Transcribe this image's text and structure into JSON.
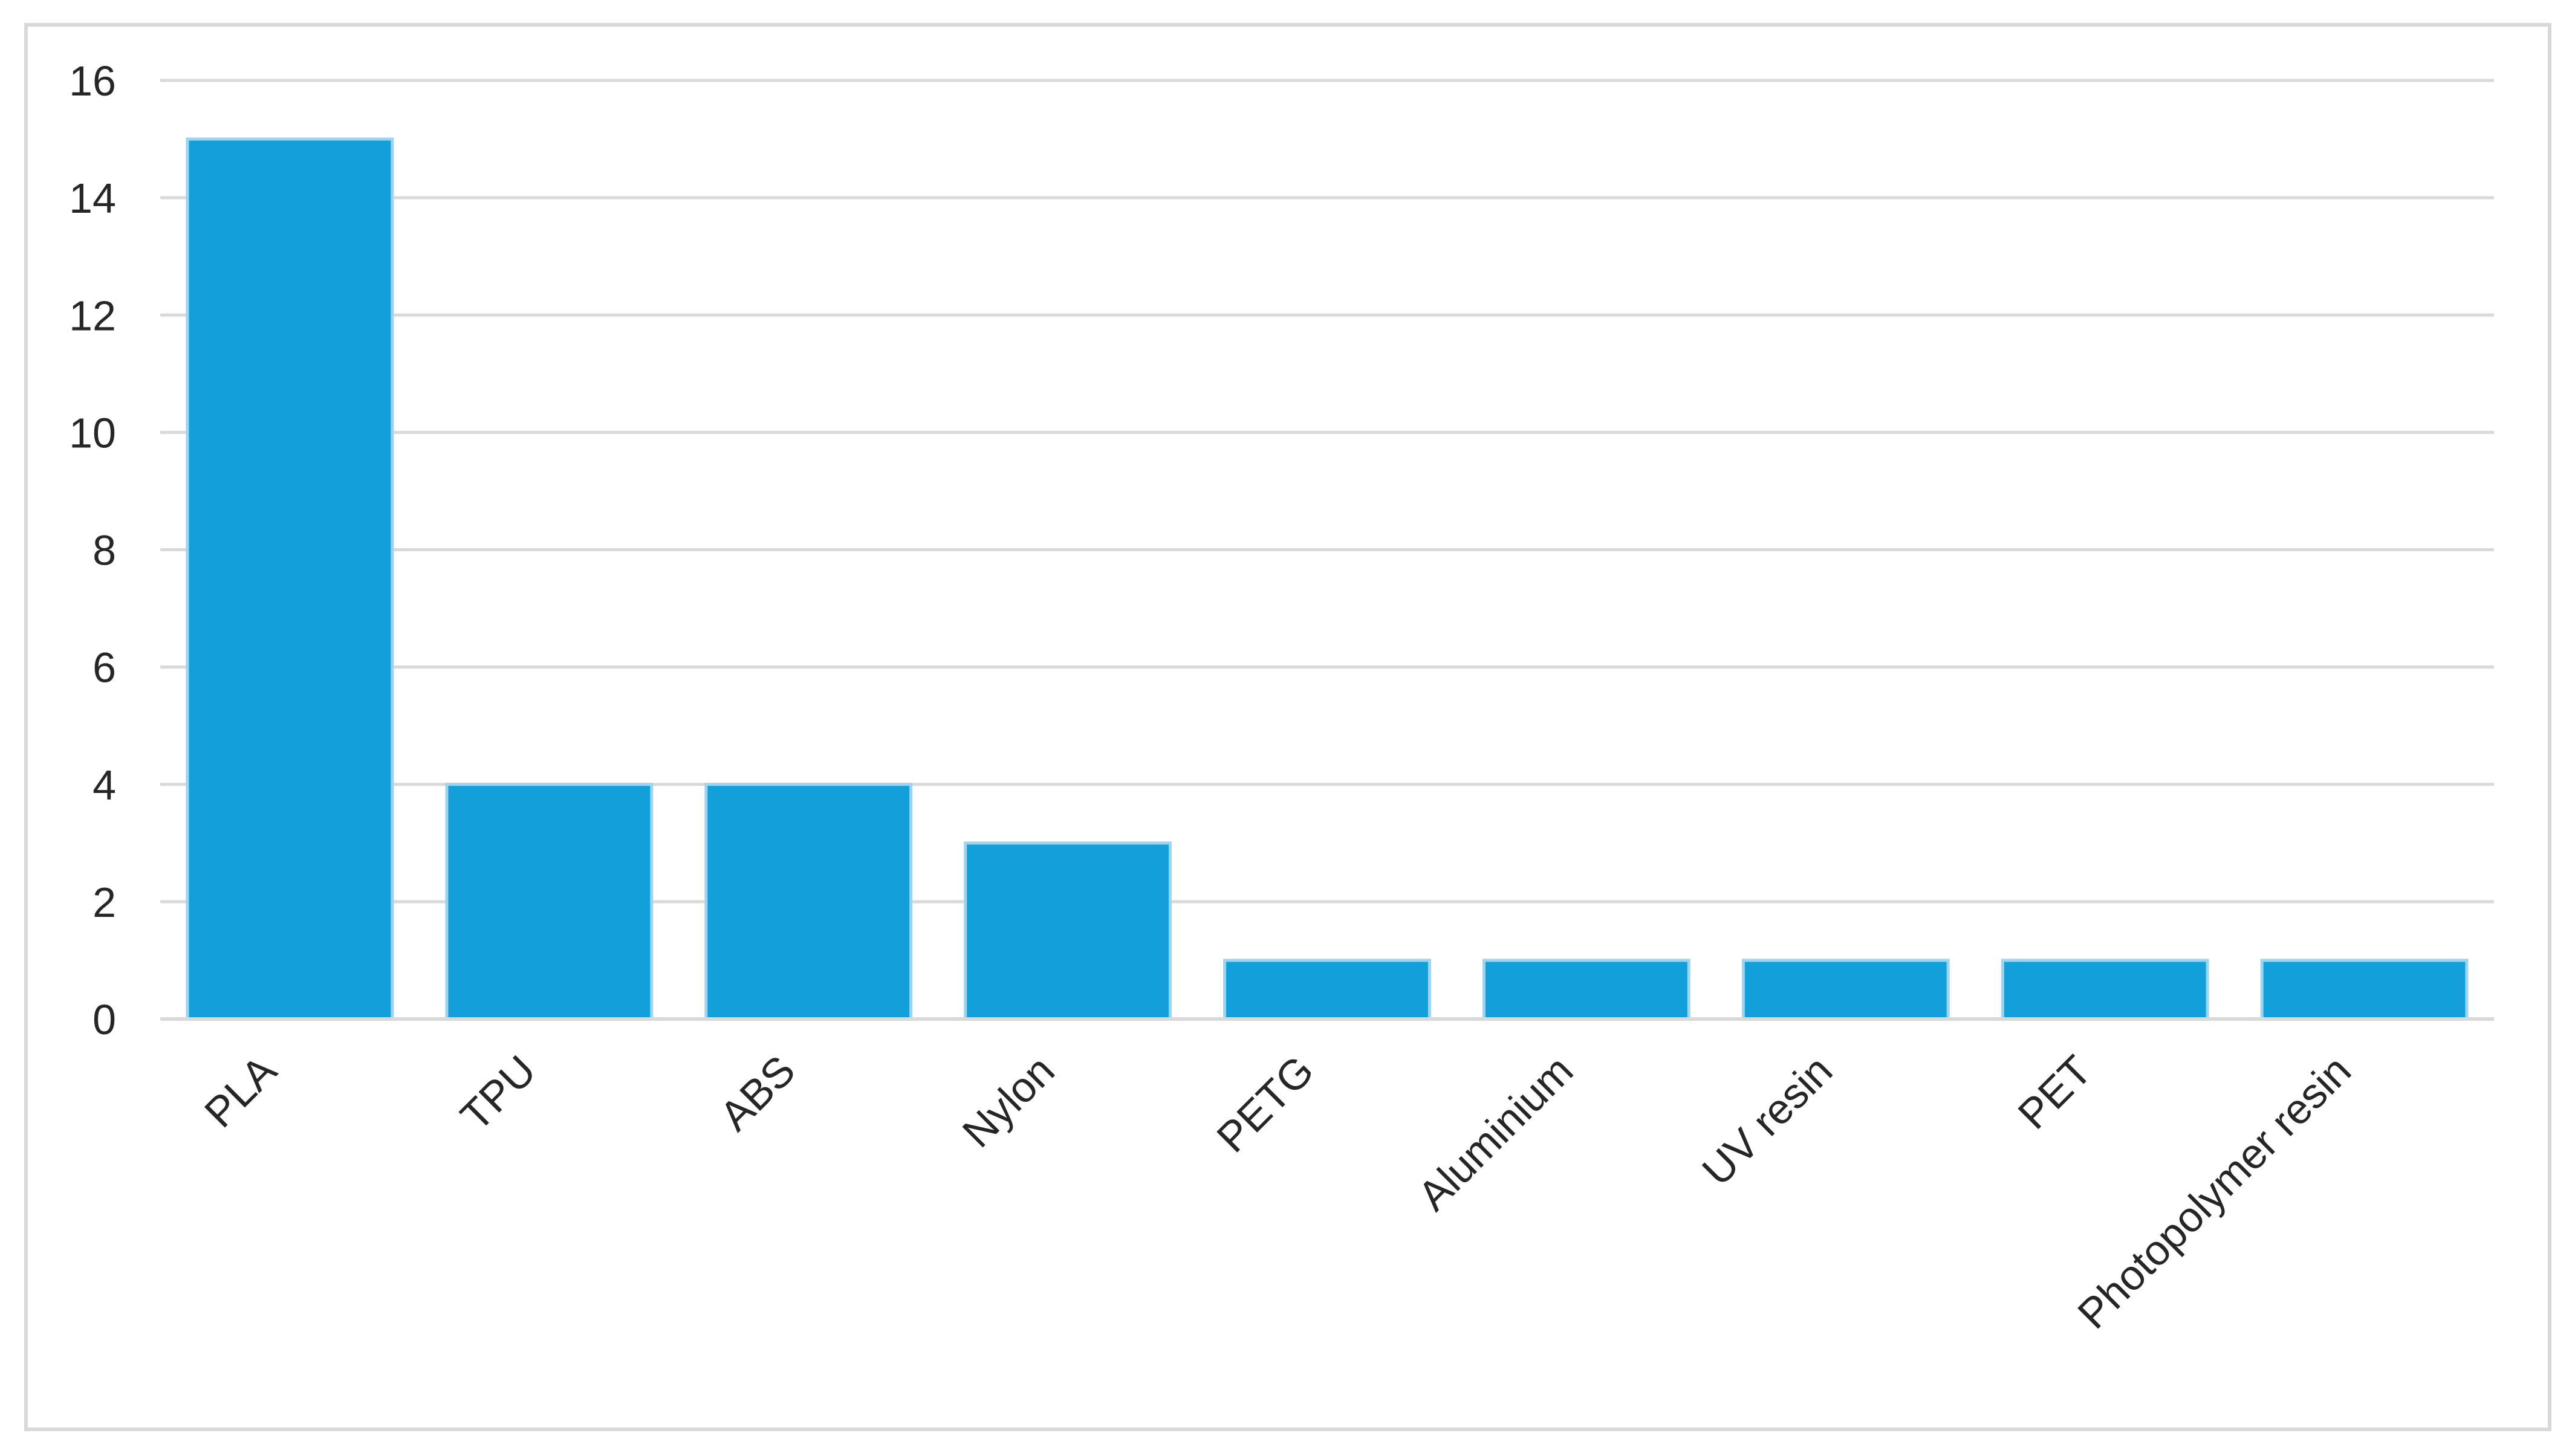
{
  "chart_data": {
    "type": "bar",
    "categories": [
      "PLA",
      "TPU",
      "ABS",
      "Nylon",
      "PETG",
      "Aluminium",
      "UV resin",
      "PET",
      "Photopolymer resin"
    ],
    "values": [
      15,
      4,
      4,
      3,
      1,
      1,
      1,
      1,
      1
    ],
    "ylim": [
      0,
      16
    ],
    "yticks": [
      0,
      2,
      4,
      6,
      8,
      10,
      12,
      14,
      16
    ],
    "grid": true,
    "legend": "none",
    "bar_color": "#139fd9",
    "bar_edge_color": "#9dd4f0",
    "grid_color": "#d9d9d9",
    "title": "",
    "xlabel": "",
    "ylabel": ""
  }
}
